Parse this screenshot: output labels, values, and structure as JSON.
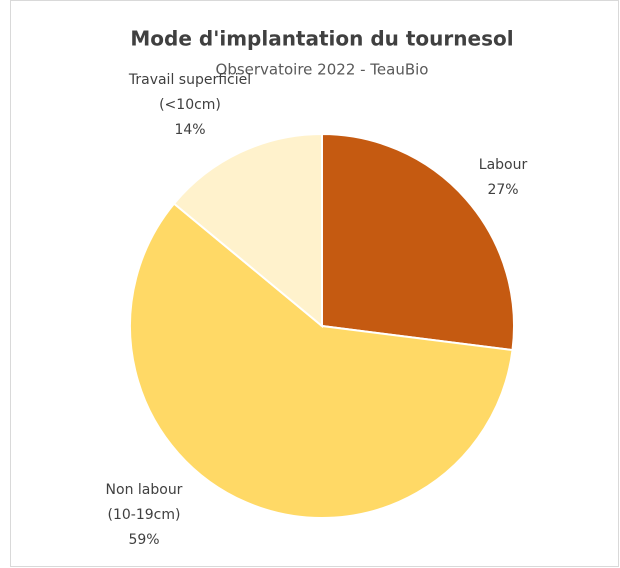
{
  "chart_data": {
    "type": "pie",
    "title": "Mode d'implantation du tournesol",
    "subtitle": "Observatoire 2022 - TeauBio",
    "categories": [
      "Labour",
      "Non labour (10-19cm)",
      "Travail superficiel (<10cm)"
    ],
    "values": [
      27,
      59,
      14
    ],
    "value_labels": [
      "27%",
      "59%",
      "14%"
    ],
    "colors": [
      "#c55a11",
      "#ffd966",
      "#fff2cc"
    ]
  }
}
